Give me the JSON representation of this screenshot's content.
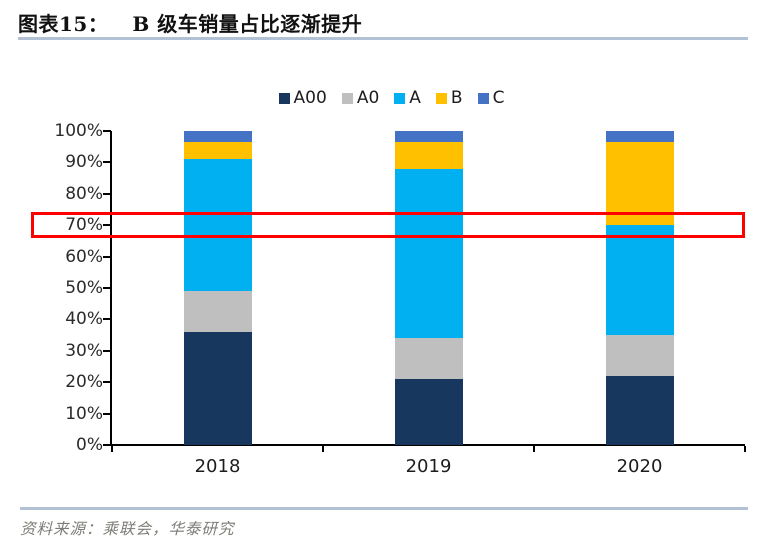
{
  "header": {
    "figure_label": "图表15：",
    "title": "B 级车销量占比逐渐提升"
  },
  "chart_data": {
    "type": "bar",
    "variant": "stacked-100-percent",
    "title": "B 级车销量占比逐渐提升",
    "categories": [
      "2018",
      "2019",
      "2020"
    ],
    "series": [
      {
        "name": "A00",
        "color": "#17375E",
        "values": [
          36,
          21,
          22
        ]
      },
      {
        "name": "A0",
        "color": "#BFBFBF",
        "values": [
          13,
          13,
          13
        ]
      },
      {
        "name": "A",
        "color": "#00B0F0",
        "values": [
          42,
          54,
          35
        ]
      },
      {
        "name": "B",
        "color": "#FFC000",
        "values": [
          5.5,
          8.5,
          26.5
        ]
      },
      {
        "name": "C",
        "color": "#4472C4",
        "values": [
          3.5,
          3.5,
          3.5
        ]
      }
    ],
    "y_axis": {
      "min": 0,
      "max": 100,
      "tick_step": 10,
      "tick_labels": [
        "0%",
        "10%",
        "20%",
        "30%",
        "40%",
        "50%",
        "60%",
        "70%",
        "80%",
        "90%",
        "100%"
      ]
    },
    "legend_position": "top",
    "grid": "off",
    "annotation": {
      "shape": "rectangle",
      "border_color": "#FF0000",
      "highlighted_tick": "70%"
    }
  },
  "footer": {
    "source": "资料来源：乘联会，华泰研究"
  }
}
